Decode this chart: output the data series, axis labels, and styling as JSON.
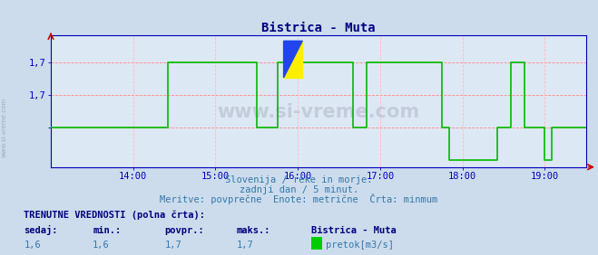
{
  "title": "Bistrica - Muta",
  "title_color": "#000080",
  "title_fontsize": 10,
  "bg_color": "#ccdcec",
  "plot_bg_color": "#dce8f4",
  "grid_color_h": "#ff8888",
  "grid_color_v": "#ffbbbb",
  "line_color": "#00bb00",
  "axis_color": "#0000bb",
  "text_color": "#3377aa",
  "xmin": 0,
  "xmax": 390,
  "ymin": 1.54,
  "ymax": 1.74,
  "ytick_positions": [
    1.6,
    1.65,
    1.7
  ],
  "ytick_labels": [
    "",
    "1,7",
    "1,7"
  ],
  "xtick_positions": [
    60,
    120,
    180,
    240,
    300,
    360
  ],
  "xtick_labels": [
    "14:00",
    "15:00",
    "16:00",
    "17:00",
    "18:00",
    "19:00"
  ],
  "watermark": "www.si-vreme.com",
  "subtitle1": "Slovenija / reke in morje.",
  "subtitle2": "zadnji dan / 5 minut.",
  "subtitle3": "Meritve: povprečne  Enote: metrične  Črta: minmum",
  "footer_label": "TRENUTNE VREDNOSTI (polna črta):",
  "footer_sedaj": "sedaj:",
  "footer_min": "min.:",
  "footer_povpr": "povpr.:",
  "footer_maks": "maks.:",
  "footer_station": "Bistrica - Muta",
  "footer_sedaj_val": "1,6",
  "footer_min_val": "1,6",
  "footer_povpr_val": "1,7",
  "footer_maks_val": "1,7",
  "footer_legend": "pretok[m3/s]",
  "legend_color": "#00cc00",
  "data_x": [
    0,
    5,
    10,
    15,
    20,
    25,
    30,
    35,
    40,
    45,
    50,
    55,
    60,
    65,
    70,
    75,
    80,
    85,
    90,
    95,
    100,
    105,
    110,
    115,
    120,
    125,
    130,
    135,
    140,
    145,
    150,
    155,
    160,
    165,
    170,
    175,
    180,
    185,
    190,
    195,
    200,
    205,
    210,
    215,
    220,
    225,
    230,
    235,
    240,
    245,
    250,
    255,
    260,
    265,
    270,
    275,
    280,
    285,
    290,
    295,
    300,
    305,
    310,
    315,
    320,
    325,
    330,
    335,
    340,
    345,
    350,
    355,
    360,
    365,
    370,
    375,
    380,
    385,
    390
  ],
  "data_y": [
    1.6,
    1.6,
    1.6,
    1.6,
    1.6,
    1.6,
    1.6,
    1.6,
    1.6,
    1.6,
    1.6,
    1.6,
    1.6,
    1.6,
    1.6,
    1.6,
    1.6,
    1.7,
    1.7,
    1.7,
    1.7,
    1.7,
    1.7,
    1.7,
    1.7,
    1.7,
    1.7,
    1.7,
    1.7,
    1.7,
    1.6,
    1.6,
    1.6,
    1.7,
    1.7,
    1.7,
    1.7,
    1.7,
    1.7,
    1.7,
    1.7,
    1.7,
    1.7,
    1.7,
    1.6,
    1.6,
    1.7,
    1.7,
    1.7,
    1.7,
    1.7,
    1.7,
    1.7,
    1.7,
    1.7,
    1.7,
    1.7,
    1.6,
    1.55,
    1.55,
    1.55,
    1.55,
    1.55,
    1.55,
    1.55,
    1.6,
    1.6,
    1.7,
    1.7,
    1.6,
    1.6,
    1.6,
    1.55,
    1.6,
    1.6,
    1.6,
    1.6,
    1.6,
    1.6
  ]
}
